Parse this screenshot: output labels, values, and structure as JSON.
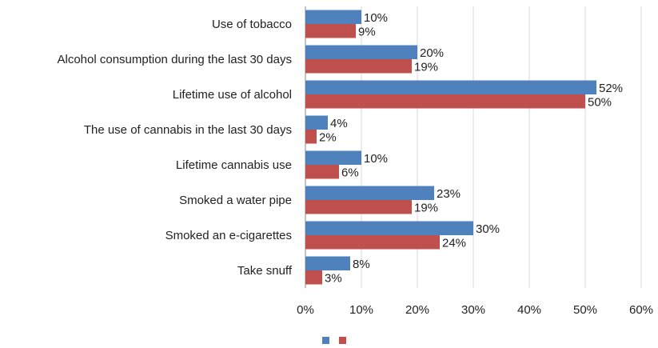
{
  "chart_data": {
    "type": "bar",
    "orientation": "horizontal",
    "categories": [
      "Use of tobacco",
      "Alcohol consumption during the last 30 days",
      "Lifetime use of alcohol",
      "The use of cannabis in the last 30 days",
      "Lifetime cannabis use",
      "Smoked a water pipe",
      "Smoked an e-cigarettes",
      "Take snuff"
    ],
    "series": [
      {
        "values": [
          10,
          20,
          52,
          4,
          10,
          23,
          30,
          8
        ],
        "color": "#4f81bd"
      },
      {
        "values": [
          9,
          19,
          50,
          2,
          6,
          19,
          24,
          3
        ],
        "color": "#c0504d"
      }
    ],
    "value_suffix": "%",
    "xlim": [
      0,
      60
    ],
    "xticks": [
      0,
      10,
      20,
      30,
      40,
      50,
      60
    ],
    "tick_labels": [
      "0%",
      "10%",
      "20%",
      "30%",
      "40%",
      "50%",
      "60%"
    ],
    "grid": true,
    "legend": "bottom-center",
    "title": "",
    "xlabel": "",
    "ylabel": ""
  }
}
